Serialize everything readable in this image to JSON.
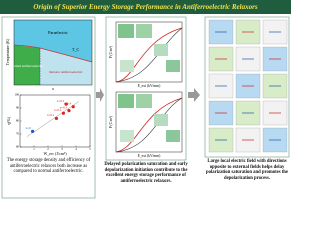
{
  "header": {
    "title": "Origin of Superior Energy Storage Performance in Antiferroelectric Relaxors"
  },
  "phase_diagram": {
    "y_label": "Temperature (K)",
    "x_label": "x",
    "tc_label": "T_C",
    "regions": [
      "Paraelectric",
      "Normal antiferroelectric",
      "Relaxor antiferroelectric"
    ]
  },
  "scatter": {
    "y_label": "η(%)",
    "x_label": "W_rec (J/cm³)",
    "xlim": [
      0,
      5
    ],
    "ylim": [
      60,
      100
    ],
    "xticks": [
      1,
      2,
      3,
      4,
      5
    ],
    "yticks": [
      60,
      70,
      80,
      90,
      100
    ],
    "points": [
      {
        "label": "x=0",
        "w": 0.9,
        "eta": 72,
        "color": "#2255cc"
      },
      {
        "label": "x=0.1",
        "w": 2.6,
        "eta": 82,
        "color": "#dd2222"
      },
      {
        "label": "x=0.2",
        "w": 3.1,
        "eta": 86,
        "color": "#dd2222"
      },
      {
        "label": "x=0.3",
        "w": 3.5,
        "eta": 88,
        "color": "#dd2222"
      },
      {
        "label": "x=0.4",
        "w": 3.8,
        "eta": 91,
        "color": "#dd2222"
      },
      {
        "label": "x=0.5",
        "w": 3.3,
        "eta": 93,
        "color": "#dd2222"
      }
    ]
  },
  "loops": {
    "y_label": "P (C/m²)",
    "x_label": "E_ext (kV/mm)"
  },
  "panels": [
    {
      "text": "The energy storage density and efficiency of antiferroelectric relaxors both increase as compared to normal antiferroelectric."
    },
    {
      "text": "Delayed polarization saturation and early depolarization initiation contribute to the excellent energy storage performance of antiferroelectric relaxors."
    },
    {
      "text": "Large local electric field with directions opposite to external fields helps delay polarization saturation and promotes the depolarization process."
    }
  ]
}
